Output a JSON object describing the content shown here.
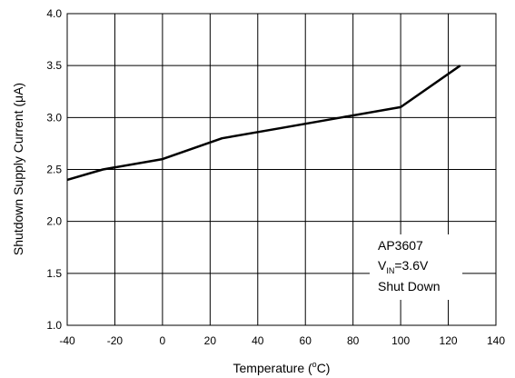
{
  "chart_data": {
    "type": "line",
    "xlabel_main": "Temperature (",
    "xlabel_sup": "o",
    "xlabel_tail": "C)",
    "ylabel": "Shutdown Supply Current (μA)",
    "xlim": [
      -40,
      140
    ],
    "ylim": [
      1.0,
      4.0
    ],
    "xticks": [
      -40,
      -20,
      0,
      20,
      40,
      60,
      80,
      100,
      120,
      140
    ],
    "yticks": [
      "1.0",
      "1.5",
      "2.0",
      "2.5",
      "3.0",
      "3.5",
      "4.0"
    ],
    "grid": true,
    "series": [
      {
        "x": [
          -40,
          -25,
          0,
          25,
          50,
          75,
          100,
          125
        ],
        "y": [
          2.4,
          2.5,
          2.6,
          2.8,
          2.9,
          3.0,
          3.1,
          3.5
        ]
      }
    ],
    "annotation": {
      "line1": "AP3607",
      "line2_main": "V",
      "line2_sub": "IN",
      "line2_tail": "=3.6V",
      "line3": "Shut Down"
    }
  }
}
